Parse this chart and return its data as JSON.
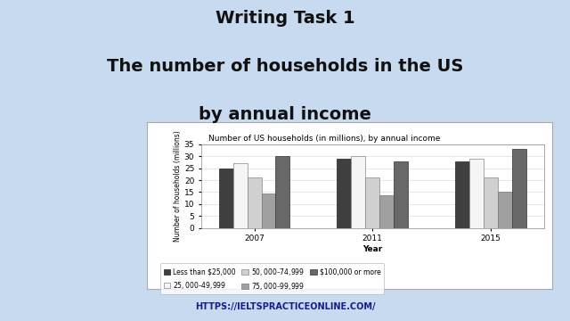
{
  "title_main_line1": "Writing Task 1",
  "title_main_line2": "The number of households in the US",
  "title_main_line3": "by annual income",
  "chart_title": "Number of US households (in millions), by annual income",
  "xlabel": "Year",
  "ylabel": "Number of households (millions)",
  "years": [
    "2007",
    "2011",
    "2015"
  ],
  "categories": [
    "Less than $25,000",
    "$25,000–$49,999",
    "$50,000–$74,999",
    "$75,000–$99,999",
    "$100,000 or more"
  ],
  "values": {
    "2007": [
      25,
      27,
      21,
      14.5,
      30
    ],
    "2011": [
      29,
      30,
      21,
      13.5,
      28
    ],
    "2015": [
      28,
      29,
      21,
      15,
      33
    ]
  },
  "bar_colors": [
    "#404040",
    "#f5f5f5",
    "#d0d0d0",
    "#a0a0a0",
    "#686868"
  ],
  "bar_edgecolors": [
    "#222222",
    "#888888",
    "#888888",
    "#777777",
    "#333333"
  ],
  "ylim": [
    0,
    35
  ],
  "yticks": [
    0,
    5,
    10,
    15,
    20,
    25,
    30,
    35
  ],
  "background_color": "#c8daf0",
  "chart_bg": "#ffffff",
  "chart_border": "#aaaaaa",
  "footer": "HTTPS://IELTSPRACTICEONLINE.COM/",
  "title_fontsize": 14,
  "chart_title_fontsize": 6.5,
  "legend_fontsize": 5.5,
  "axis_fontsize": 6.5,
  "ylabel_fontsize": 5.5
}
